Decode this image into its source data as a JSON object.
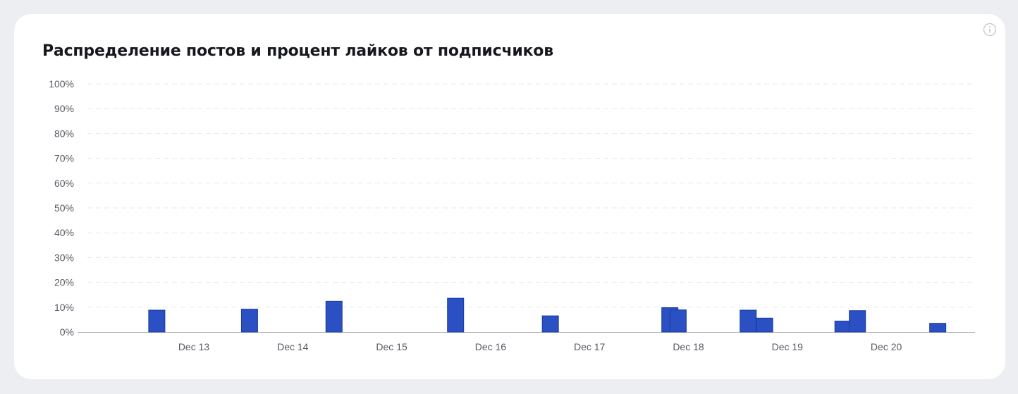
{
  "card": {
    "title": "Распределение постов и процент лайков от подписчиков",
    "info_icon": "info-icon"
  },
  "colors": {
    "bar_fill": "#2a50c4",
    "bar_stroke": "#1b3a9a",
    "grid": "#e6e8ec",
    "axis": "#a8adb5",
    "card_background": "#ffffff",
    "page_background": "#eceef2"
  },
  "chart_data": {
    "type": "bar",
    "title": "Распределение постов и процент лайков от подписчиков",
    "xlabel": "",
    "ylabel": "",
    "x_axis": "time",
    "x_tick_labels": [
      "Dec 13",
      "Dec 14",
      "Dec 15",
      "Dec 16",
      "Dec 17",
      "Dec 18",
      "Dec 19",
      "Dec 20"
    ],
    "y_tick_labels": [
      "0%",
      "10%",
      "20%",
      "30%",
      "40%",
      "50%",
      "60%",
      "70%",
      "80%",
      "90%",
      "100%"
    ],
    "ylim": [
      0,
      100
    ],
    "y_unit": "%",
    "grid": "horizontal dashed",
    "legend": "none",
    "series": [
      {
        "points": [
          {
            "x": "2023-12-12 15:00",
            "y": 8.8
          },
          {
            "x": "2023-12-13 13:30",
            "y": 9.2
          },
          {
            "x": "2023-12-14 10:00",
            "y": 12.4
          },
          {
            "x": "2023-12-15 15:30",
            "y": 13.6
          },
          {
            "x": "2023-12-16 14:30",
            "y": 6.5
          },
          {
            "x": "2023-12-17 19:30",
            "y": 9.8
          },
          {
            "x": "2023-12-17 21:30",
            "y": 8.9
          },
          {
            "x": "2023-12-18 14:30",
            "y": 8.8
          },
          {
            "x": "2023-12-18 18:30",
            "y": 5.6
          },
          {
            "x": "2023-12-19 13:30",
            "y": 4.4
          },
          {
            "x": "2023-12-19 17:00",
            "y": 8.6
          },
          {
            "x": "2023-12-20 12:30",
            "y": 3.5
          }
        ]
      }
    ]
  }
}
